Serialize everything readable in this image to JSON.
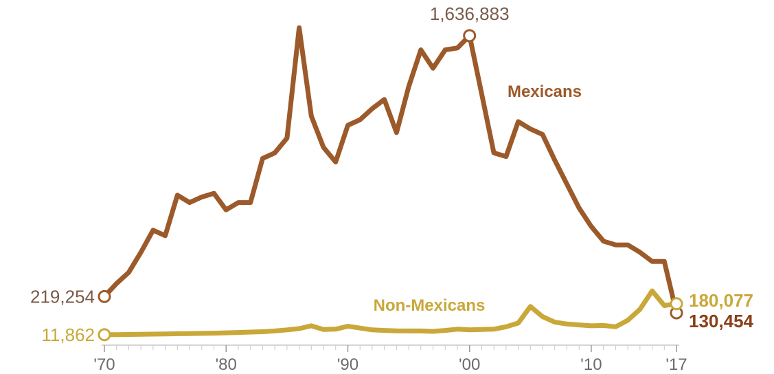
{
  "chart_data": {
    "type": "line",
    "title": "",
    "xlabel": "",
    "ylabel": "",
    "xlim": [
      1970,
      2017
    ],
    "ylim": [
      0,
      1700000
    ],
    "x_ticks": [
      1970,
      1980,
      1990,
      2000,
      2010,
      2017
    ],
    "x_tick_labels": [
      "'70",
      "'80",
      "'90",
      "'00",
      "'10",
      "'17"
    ],
    "grid": false,
    "x": [
      1970,
      1971,
      1972,
      1973,
      1974,
      1975,
      1976,
      1977,
      1978,
      1979,
      1980,
      1981,
      1982,
      1983,
      1984,
      1985,
      1986,
      1987,
      1988,
      1989,
      1990,
      1991,
      1992,
      1993,
      1994,
      1995,
      1996,
      1997,
      1998,
      1999,
      2000,
      2001,
      2002,
      2003,
      2004,
      2005,
      2006,
      2007,
      2008,
      2009,
      2010,
      2011,
      2012,
      2013,
      2014,
      2015,
      2016,
      2017
    ],
    "series": [
      {
        "name": "Mexicans",
        "color": "#9c5a2a",
        "values": [
          219254,
          290000,
          350000,
          460000,
          580000,
          550000,
          770000,
          730000,
          760000,
          780000,
          690000,
          730000,
          730000,
          970000,
          1000000,
          1080000,
          1680000,
          1200000,
          1030000,
          950000,
          1150000,
          1180000,
          1240000,
          1290000,
          1110000,
          1360000,
          1560000,
          1460000,
          1560000,
          1570000,
          1636883,
          1320000,
          1000000,
          980000,
          1170000,
          1130000,
          1100000,
          960000,
          830000,
          700000,
          600000,
          520000,
          500000,
          500000,
          460000,
          410000,
          410000,
          130454
        ],
        "annotations": [
          {
            "year": 1970,
            "label": "219,254"
          },
          {
            "year": 2000,
            "label": "1,636,883"
          },
          {
            "year": 2017,
            "label": "130,454"
          }
        ]
      },
      {
        "name": "Non-Mexicans",
        "color": "#c9a83a",
        "values": [
          11862,
          12000,
          13000,
          14000,
          15000,
          16000,
          17000,
          18000,
          19000,
          20000,
          22000,
          24000,
          26000,
          28000,
          32000,
          38000,
          45000,
          60000,
          40000,
          42000,
          58000,
          48000,
          38000,
          35000,
          33000,
          32000,
          32000,
          30000,
          35000,
          42000,
          38000,
          40000,
          42000,
          55000,
          75000,
          165000,
          110000,
          80000,
          70000,
          65000,
          60000,
          62000,
          55000,
          90000,
          150000,
          250000,
          170000,
          180077
        ],
        "annotations": [
          {
            "year": 1970,
            "label": "11,862"
          },
          {
            "year": 2017,
            "label": "180,077"
          }
        ]
      }
    ]
  }
}
